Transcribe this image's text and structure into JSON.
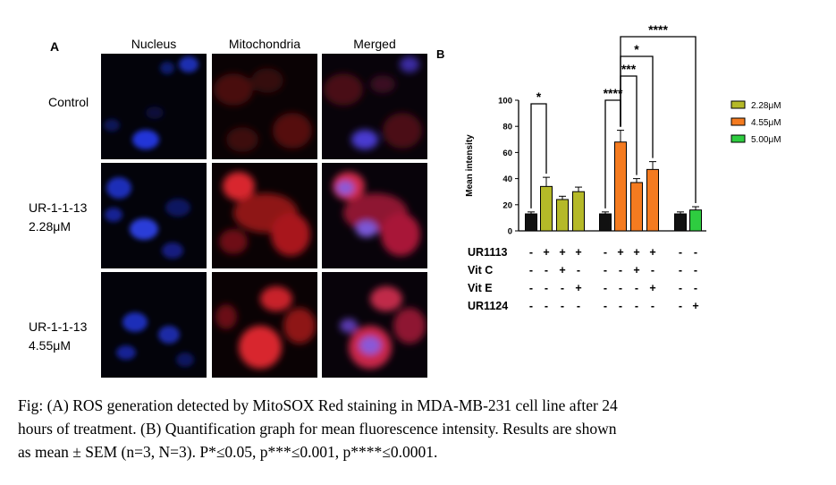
{
  "panel_a": {
    "label": "A",
    "columns": [
      "Nucleus",
      "Mitochondria",
      "Merged"
    ],
    "rows": [
      {
        "line1": "Control",
        "line2": ""
      },
      {
        "line1": "UR-1-1-13",
        "line2": "2.28μM"
      },
      {
        "line1": "UR-1-1-13",
        "line2": "4.55μM"
      }
    ]
  },
  "panel_b_label": "B",
  "chart_data": {
    "type": "bar",
    "ylabel": "Mean intensity",
    "ylim": [
      0,
      100
    ],
    "yticks": [
      0,
      20,
      40,
      60,
      80,
      100
    ],
    "bars": [
      {
        "group": 0,
        "series": "control",
        "value": 13,
        "error": 1.5,
        "color": "#111111"
      },
      {
        "group": 0,
        "series": "2.28μM",
        "value": 34,
        "error": 7,
        "color": "#b5b928"
      },
      {
        "group": 0,
        "series": "2.28μM",
        "value": 24,
        "error": 2.5,
        "color": "#b5b928"
      },
      {
        "group": 0,
        "series": "2.28μM",
        "value": 30,
        "error": 3.5,
        "color": "#b5b928"
      },
      {
        "group": 1,
        "series": "control",
        "value": 13,
        "error": 1.5,
        "color": "#111111"
      },
      {
        "group": 1,
        "series": "4.55μM",
        "value": 68,
        "error": 9,
        "color": "#f47b20"
      },
      {
        "group": 1,
        "series": "4.55μM",
        "value": 37,
        "error": 3,
        "color": "#f47b20"
      },
      {
        "group": 1,
        "series": "4.55μM",
        "value": 47,
        "error": 6,
        "color": "#f47b20"
      },
      {
        "group": 2,
        "series": "control",
        "value": 13,
        "error": 1.5,
        "color": "#111111"
      },
      {
        "group": 2,
        "series": "5.00μM",
        "value": 16,
        "error": 2.5,
        "color": "#2ecc40"
      }
    ],
    "legend": [
      {
        "name": "2.28μM",
        "color": "#b5b928"
      },
      {
        "name": "4.55μM",
        "color": "#f47b20"
      },
      {
        "name": "5.00μM",
        "color": "#2ecc40"
      }
    ],
    "legend_position": "right",
    "treatment_rows": [
      {
        "label": "UR1113",
        "marks": [
          "-",
          "+",
          "+",
          "+",
          "-",
          "+",
          "+",
          "+",
          "-",
          "-"
        ]
      },
      {
        "label": "Vit C",
        "marks": [
          "-",
          "-",
          "+",
          "-",
          "-",
          "-",
          "+",
          "-",
          "-",
          "-"
        ]
      },
      {
        "label": "Vit E",
        "marks": [
          "-",
          "-",
          "-",
          "+",
          "-",
          "-",
          "-",
          "+",
          "-",
          "-"
        ]
      },
      {
        "label": "UR1124",
        "marks": [
          "-",
          "-",
          "-",
          "-",
          "-",
          "-",
          "-",
          "-",
          "-",
          "+"
        ]
      }
    ],
    "significance": [
      {
        "from": 0,
        "to": 1,
        "label": "*"
      },
      {
        "from": 4,
        "to": 5,
        "label": "****"
      },
      {
        "from": 5,
        "to": 6,
        "label": "***"
      },
      {
        "from": 5,
        "to": 7,
        "label": "*"
      },
      {
        "from": 5,
        "to": 9,
        "label": "****"
      }
    ]
  },
  "caption": {
    "line1": "Fig: (A) ROS generation detected by MitoSOX Red staining in MDA-MB-231 cell line after 24",
    "line2": "hours of treatment. (B) Quantification graph for mean fluorescence intensity. Results are shown",
    "line3": "as mean ± SEM (n=3, N=3). P*≤0.05, p***≤0.001, p****≤0.0001."
  }
}
